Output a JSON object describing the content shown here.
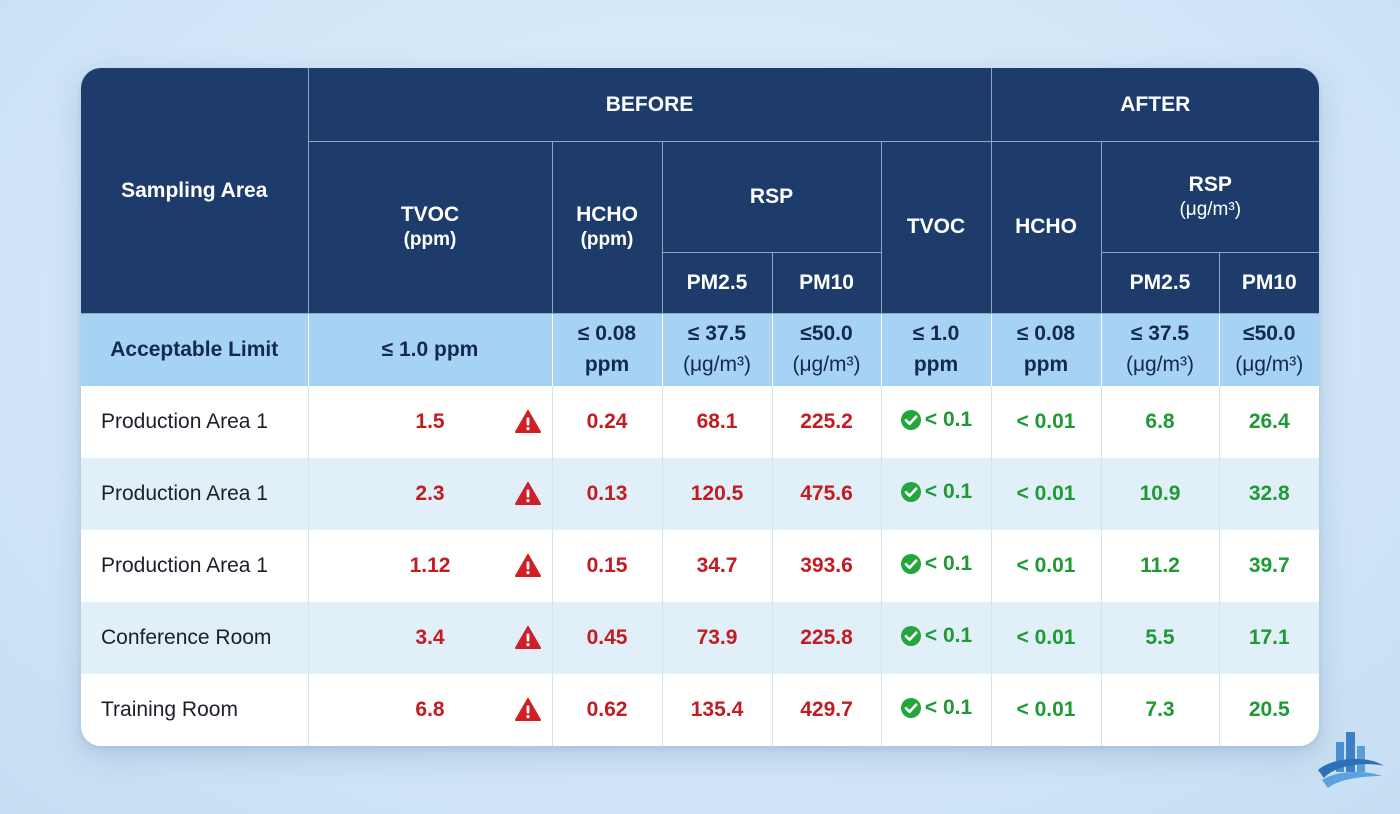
{
  "header": {
    "sampling_area": "Sampling Area",
    "before": "BEFORE",
    "after": "AFTER",
    "before_tvoc": "TVOC",
    "before_tvoc_unit": "(ppm)",
    "before_hcho": "HCHO",
    "before_hcho_unit": "(ppm)",
    "before_rsp": "RSP",
    "before_pm25": "PM2.5",
    "before_pm10": "PM10",
    "after_tvoc": "TVOC",
    "after_hcho": "HCHO",
    "after_rsp": "RSP",
    "after_rsp_unit": "(μg/m³)",
    "after_pm25": "PM2.5",
    "after_pm10": "PM10"
  },
  "limit": {
    "label": "Acceptable Limit",
    "before_tvoc": "≤ 1.0 ppm",
    "before_hcho_1": "≤ 0.08",
    "before_hcho_2": "ppm",
    "before_pm25_1": "≤ 37.5",
    "before_pm25_2": "(μg/m³)",
    "before_pm10_1": "≤50.0",
    "before_pm10_2": "(μg/m³)",
    "after_tvoc_1": "≤ 1.0",
    "after_tvoc_2": "ppm",
    "after_hcho_1": "≤ 0.08",
    "after_hcho_2": "ppm",
    "after_pm25_1": "≤ 37.5",
    "after_pm25_2": "(μg/m³)",
    "after_pm10_1": "≤50.0",
    "after_pm10_2": "(μg/m³)"
  },
  "rows": [
    {
      "area": "Production Area 1",
      "b_tvoc": "1.5",
      "b_hcho": "0.24",
      "b_pm25": "68.1",
      "b_pm10": "225.2",
      "a_tvoc": "< 0.1",
      "a_hcho": "< 0.01",
      "a_pm25": "6.8",
      "a_pm10": "26.4"
    },
    {
      "area": "Production Area 1",
      "b_tvoc": "2.3",
      "b_hcho": "0.13",
      "b_pm25": "120.5",
      "b_pm10": "475.6",
      "a_tvoc": "< 0.1",
      "a_hcho": "< 0.01",
      "a_pm25": "10.9",
      "a_pm10": "32.8"
    },
    {
      "area": "Production Area 1",
      "b_tvoc": "1.12",
      "b_hcho": "0.15",
      "b_pm25": "34.7",
      "b_pm10": "393.6",
      "a_tvoc": "< 0.1",
      "a_hcho": "< 0.01",
      "a_pm25": "11.2",
      "a_pm10": "39.7"
    },
    {
      "area": "Conference Room",
      "b_tvoc": "3.4",
      "b_hcho": "0.45",
      "b_pm25": "73.9",
      "b_pm10": "225.8",
      "a_tvoc": "< 0.1",
      "a_hcho": "< 0.01",
      "a_pm25": "5.5",
      "a_pm10": "17.1"
    },
    {
      "area": "Training Room",
      "b_tvoc": "6.8",
      "b_hcho": "0.62",
      "b_pm25": "135.4",
      "b_pm10": "429.7",
      "a_tvoc": "< 0.1",
      "a_hcho": "< 0.01",
      "a_pm25": "7.3",
      "a_pm10": "20.5"
    }
  ],
  "icons": {
    "before_status": "warning-triangle-icon",
    "after_status": "check-circle-icon",
    "logo": "building-swoosh-logo"
  },
  "colors": {
    "header_bg": "#1d3c6c",
    "limit_bg": "#a6d3f4",
    "exceed": "#c41b21",
    "compliant": "#1e9a35"
  }
}
